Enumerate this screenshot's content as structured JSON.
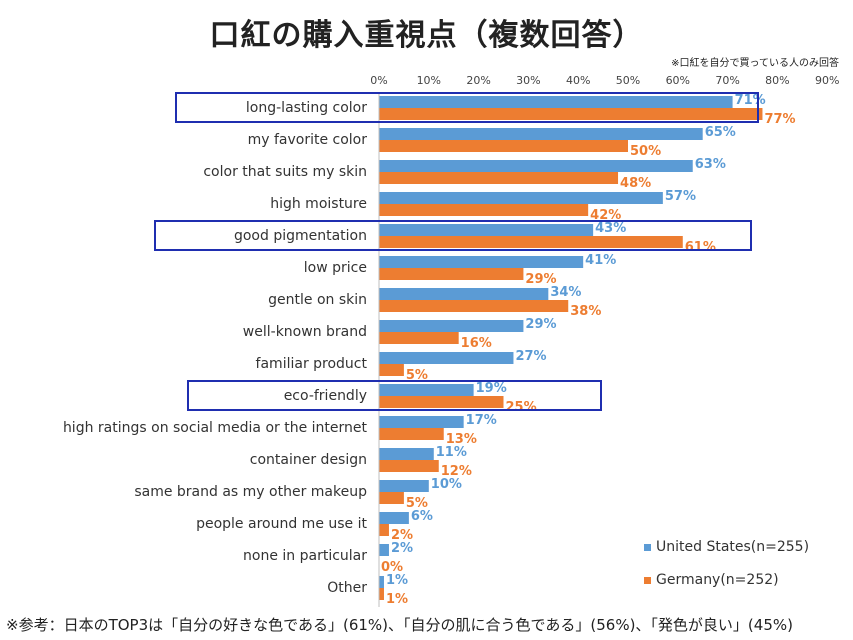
{
  "title": "口紅の購入重視点（複数回答）",
  "note": "※口紅を自分で買っている人のみ回答",
  "footnote": "※参考：日本のTOP3は「自分の好きな色である」(61%)、「自分の肌に合う色である」(56%)、「発色が良い」(45%)",
  "colors": {
    "us": "#5b9bd5",
    "de": "#ed7d31",
    "highlight": "#1f2eb0"
  },
  "chart_data": {
    "type": "bar",
    "orientation": "horizontal",
    "xlim": [
      0,
      90
    ],
    "ticks": [
      "0%",
      "10%",
      "20%",
      "30%",
      "40%",
      "50%",
      "60%",
      "70%",
      "80%",
      "90%"
    ],
    "tick_values": [
      0,
      10,
      20,
      30,
      40,
      50,
      60,
      70,
      80,
      90
    ],
    "grid": false,
    "legend_position": "bottom-right",
    "categories": [
      "long-lasting color",
      "my favorite color",
      "color that suits my skin",
      "high moisture",
      "good pigmentation",
      "low price",
      "gentle on skin",
      "well-known brand",
      "familiar product",
      "eco-friendly",
      "high ratings on social media or the internet",
      "container design",
      "same brand as my other makeup",
      "people around me use it",
      "none in particular",
      "Other"
    ],
    "series": [
      {
        "name": "United States(n=255)",
        "values": [
          71,
          65,
          63,
          57,
          43,
          41,
          34,
          29,
          27,
          19,
          17,
          11,
          10,
          6,
          2,
          1
        ]
      },
      {
        "name": "Germany(n=252)",
        "values": [
          77,
          50,
          48,
          42,
          61,
          29,
          38,
          16,
          5,
          25,
          13,
          12,
          5,
          2,
          0,
          1
        ]
      }
    ],
    "highlighted": [
      "long-lasting color",
      "good pigmentation",
      "eco-friendly"
    ]
  }
}
